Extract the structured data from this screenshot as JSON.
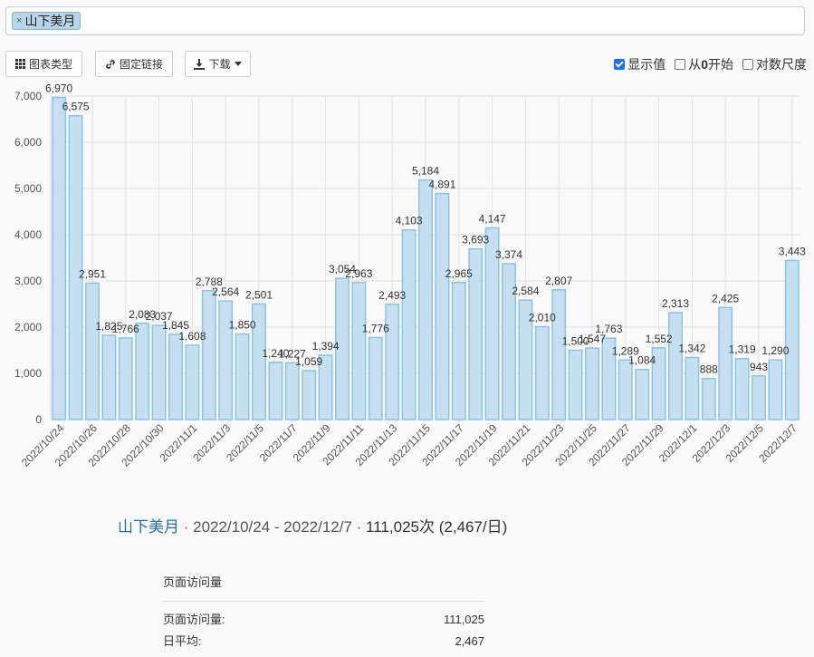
{
  "search": {
    "tag": "山下美月",
    "remove": "×"
  },
  "toolbar": {
    "chart_type": "图表类型",
    "permalink": "固定链接",
    "download": "下载"
  },
  "options": {
    "show_values": {
      "label": "显示值",
      "checked": true
    },
    "from_zero": {
      "label_prefix": "从",
      "label_bold": "0",
      "label_suffix": "开始",
      "checked": false
    },
    "log_scale": {
      "label": "对数尺度",
      "checked": false
    }
  },
  "colors": {
    "bar_fill": "#c6e0f1",
    "bar_stroke": "#8dc3e6",
    "accent": "#2a6ea6"
  },
  "chart_data": {
    "type": "bar",
    "x": [
      "2022/10/24",
      "2022/10/25",
      "2022/10/26",
      "2022/10/27",
      "2022/10/28",
      "2022/10/29",
      "2022/10/30",
      "2022/10/31",
      "2022/11/1",
      "2022/11/2",
      "2022/11/3",
      "2022/11/4",
      "2022/11/5",
      "2022/11/6",
      "2022/11/7",
      "2022/11/8",
      "2022/11/9",
      "2022/11/10",
      "2022/11/11",
      "2022/11/12",
      "2022/11/13",
      "2022/11/14",
      "2022/11/15",
      "2022/11/16",
      "2022/11/17",
      "2022/11/18",
      "2022/11/19",
      "2022/11/20",
      "2022/11/21",
      "2022/11/22",
      "2022/11/23",
      "2022/11/24",
      "2022/11/25",
      "2022/11/26",
      "2022/11/27",
      "2022/11/28",
      "2022/11/29",
      "2022/11/30",
      "2022/12/1",
      "2022/12/2",
      "2022/12/3",
      "2022/12/4",
      "2022/12/5",
      "2022/12/6",
      "2022/12/7"
    ],
    "values": [
      6970,
      6575,
      2951,
      1825,
      1766,
      2083,
      2037,
      1845,
      1608,
      2788,
      2564,
      1850,
      2501,
      1240,
      1227,
      1059,
      1394,
      3054,
      2963,
      1776,
      2493,
      4103,
      5184,
      4891,
      2965,
      3693,
      4147,
      3374,
      2584,
      2010,
      2807,
      1500,
      1547,
      1763,
      1289,
      1084,
      1552,
      2313,
      1342,
      888,
      2425,
      1319,
      943,
      1290,
      3443
    ],
    "x_tick_labels": [
      "2022/10/24",
      "2022/10/26",
      "2022/10/28",
      "2022/10/30",
      "2022/11/1",
      "2022/11/3",
      "2022/11/5",
      "2022/11/7",
      "2022/11/9",
      "2022/11/11",
      "2022/11/13",
      "2022/11/15",
      "2022/11/17",
      "2022/11/19",
      "2022/11/21",
      "2022/11/23",
      "2022/11/25",
      "2022/11/27",
      "2022/11/29",
      "2022/12/1",
      "2022/12/3",
      "2022/12/5",
      "2022/12/7"
    ],
    "y_ticks": [
      "0",
      "1,000",
      "2,000",
      "3,000",
      "4,000",
      "5,000",
      "6,000",
      "7,000"
    ],
    "ylim": [
      0,
      7000
    ],
    "grid": true,
    "data_labels": true
  },
  "summary": {
    "name": "山下美月",
    "sep1": " · ",
    "range": "2022/10/24 - 2022/12/7",
    "sep2": " · ",
    "total": "111,025次 (2,467/日)"
  },
  "stats": {
    "title": "页面访问量",
    "rows": [
      {
        "label": "页面访问量:",
        "value": "111,025"
      },
      {
        "label": "日平均:",
        "value": "2,467"
      }
    ]
  }
}
